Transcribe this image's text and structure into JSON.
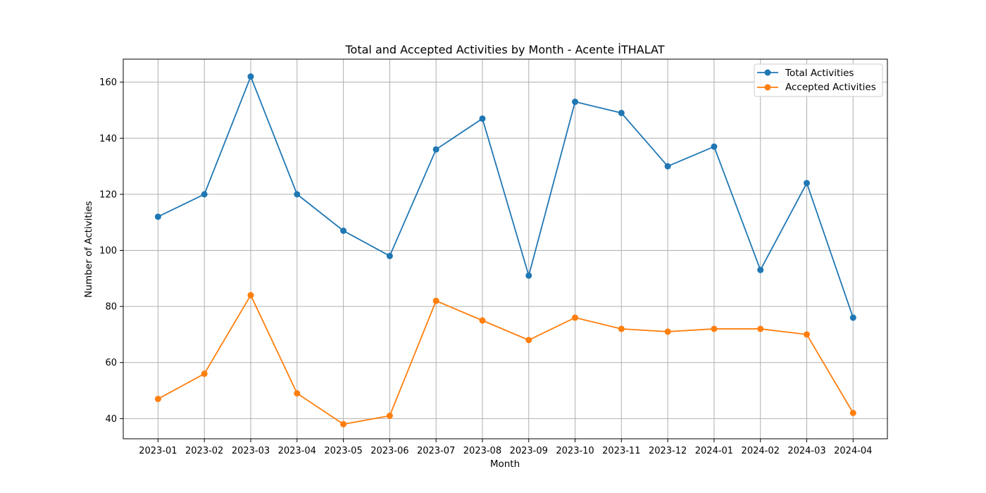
{
  "chart_data": {
    "type": "line",
    "title": "Total and Accepted Activities by Month - Acente İTHALAT",
    "xlabel": "Month",
    "ylabel": "Number of Activities",
    "categories": [
      "2023-01",
      "2023-02",
      "2023-03",
      "2023-04",
      "2023-05",
      "2023-06",
      "2023-07",
      "2023-08",
      "2023-09",
      "2023-10",
      "2023-11",
      "2023-12",
      "2024-01",
      "2024-02",
      "2024-03",
      "2024-04"
    ],
    "series": [
      {
        "name": "Total Activities",
        "color": "#1f77b4",
        "values": [
          112,
          120,
          162,
          120,
          107,
          98,
          136,
          147,
          91,
          153,
          149,
          130,
          137,
          93,
          124,
          76
        ]
      },
      {
        "name": "Accepted Activities",
        "color": "#ff7f0e",
        "values": [
          47,
          56,
          84,
          49,
          38,
          41,
          82,
          75,
          68,
          76,
          72,
          71,
          72,
          72,
          70,
          42
        ]
      }
    ],
    "ylim": [
      32.8,
      168.2
    ],
    "yticks": [
      40,
      60,
      80,
      100,
      120,
      140,
      160
    ],
    "grid": true,
    "legend_position": "upper right"
  }
}
